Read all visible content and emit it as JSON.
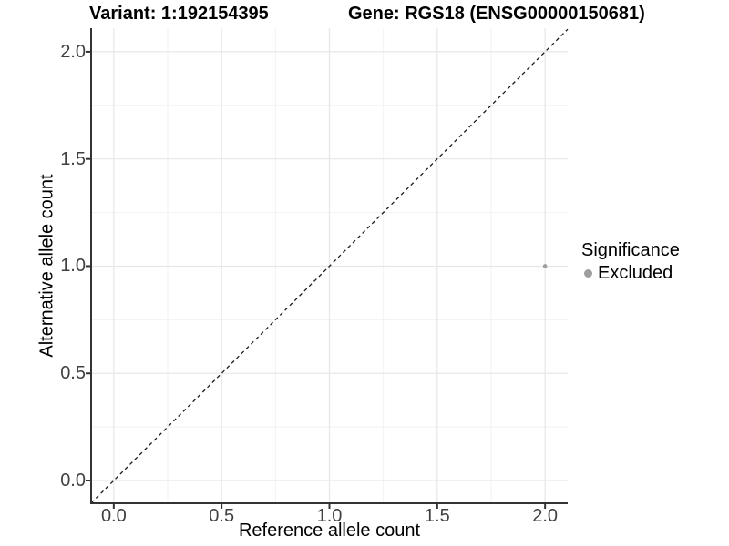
{
  "chart_data": {
    "type": "scatter",
    "title_left": "Variant: 1:192154395",
    "title_right": "Gene: RGS18 (ENSG00000150681)",
    "xlabel": "Reference allele count",
    "ylabel": "Alternative allele count",
    "xlim": [
      -0.105,
      2.105
    ],
    "ylim": [
      -0.106,
      2.11
    ],
    "x_ticks": [
      0.0,
      0.5,
      1.0,
      1.5,
      2.0
    ],
    "x_tick_labels": [
      "0.0",
      "0.5",
      "1.0",
      "1.5",
      "2.0"
    ],
    "y_ticks": [
      0.0,
      0.5,
      1.0,
      1.5,
      2.0
    ],
    "y_tick_labels": [
      "0.0",
      "0.5",
      "1.0",
      "1.5",
      "2.0"
    ],
    "x_minor": [
      0.25,
      0.75,
      1.25,
      1.75
    ],
    "y_minor": [
      0.25,
      0.75,
      1.25,
      1.75
    ],
    "grid": true,
    "points": [
      {
        "x": 2.0,
        "y": 1.0,
        "series": "Excluded",
        "color": "#9e9e9e",
        "radius": 2.3
      }
    ],
    "identity_line": {
      "slope": 1,
      "intercept": 0,
      "style": "dashed"
    },
    "legend": {
      "title": "Significance",
      "position": "right",
      "items": [
        {
          "label": "Excluded",
          "color": "#9e9e9e"
        }
      ]
    }
  },
  "colors": {
    "background": "#ffffff",
    "grid_major": "#e7e7e7",
    "grid_minor": "#f2f2f2",
    "axis_line": "#333333",
    "tick_text": "#404040",
    "dashed_line": "#1a1a1a"
  }
}
